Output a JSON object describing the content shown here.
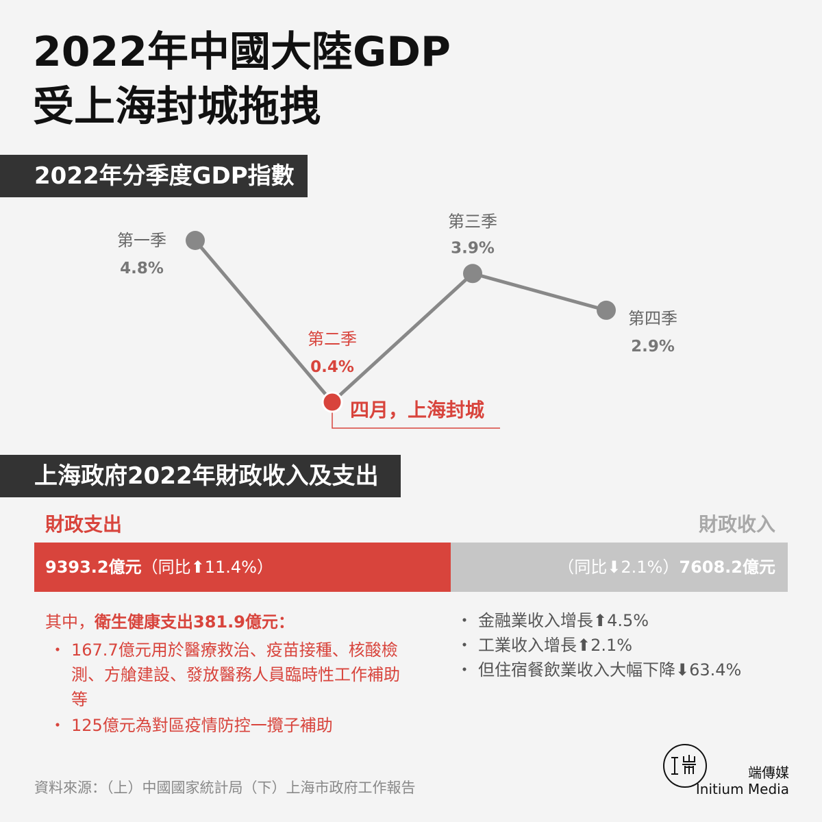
{
  "title": {
    "line1": "2022年中國大陸GDP",
    "line2": "受上海封城拖拽"
  },
  "gdp_section": {
    "header": "2022年分季度GDP指數"
  },
  "chart_data": {
    "type": "line",
    "categories": [
      "第一季",
      "第二季",
      "第三季",
      "第四季"
    ],
    "series": [
      {
        "values": [
          4.8,
          0.4,
          3.9,
          2.9
        ]
      }
    ],
    "value_labels": [
      "4.8%",
      "0.4%",
      "3.9%",
      "2.9%"
    ],
    "highlight_index": 1,
    "annotation": "四月，上海封城",
    "colors": {
      "line": "#888888",
      "highlight": "#d8443c"
    }
  },
  "fiscal_section": {
    "header": "上海政府2022年財政收入及支出",
    "expenditure": {
      "label": "財政支出",
      "amount": "9393.2億元",
      "yoy": "（同比⬆11.4%）",
      "value": 9393.2,
      "lead_prefix": "其中，",
      "lead_bold": "衛生健康支出381.9億元：",
      "items": [
        "167.7億元用於醫療救治、疫苗接種、核酸檢測、方艙建設、發放醫務人員臨時性工作補助等",
        "125億元為對區疫情防控一攬子補助"
      ]
    },
    "revenue": {
      "label": "財政收入",
      "amount": "7608.2億元",
      "yoy": "（同比⬇2.1%）",
      "value": 7608.2,
      "items": [
        "金融業收入增長⬆4.5%",
        "工業收入增長⬆2.1%",
        "但住宿餐飲業收入大幅下降⬇63.4%"
      ]
    },
    "colors": {
      "expenditure": "#d8443c",
      "revenue": "#c6c6c6"
    }
  },
  "source": "資料來源：（上）中國國家統計局（下）上海市政府工作報告",
  "brand": {
    "name": "端傳媒",
    "english": "Initium Media"
  }
}
